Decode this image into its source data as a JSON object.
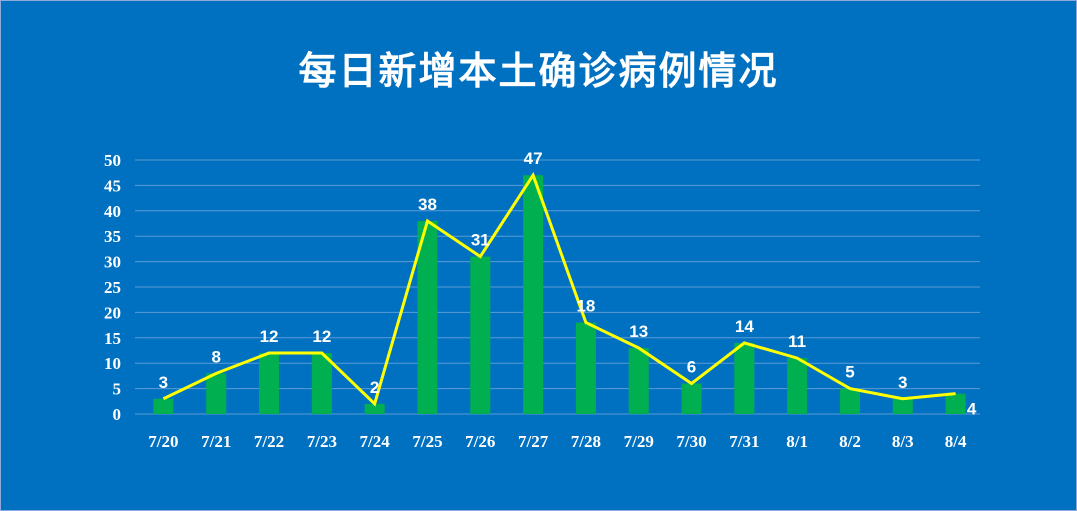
{
  "chart_data": {
    "type": "bar",
    "title": "每日新增本土确诊病例情况",
    "xlabel": "",
    "ylabel": "",
    "ylim": [
      0,
      50
    ],
    "yticks": [
      0,
      5,
      10,
      15,
      20,
      25,
      30,
      35,
      40,
      45,
      50
    ],
    "grid": true,
    "legend": "none",
    "categories": [
      "7/20",
      "7/21",
      "7/22",
      "7/23",
      "7/24",
      "7/25",
      "7/26",
      "7/27",
      "7/28",
      "7/29",
      "7/30",
      "7/31",
      "8/1",
      "8/2",
      "8/3",
      "8/4"
    ],
    "series": [
      {
        "type": "bar",
        "color": "#00b050",
        "values": [
          3,
          8,
          12,
          12,
          2,
          38,
          31,
          47,
          18,
          13,
          6,
          14,
          11,
          5,
          3,
          4
        ]
      },
      {
        "type": "line",
        "color": "#ffff00",
        "values": [
          3,
          8,
          12,
          12,
          2,
          38,
          31,
          47,
          18,
          13,
          6,
          14,
          11,
          5,
          3,
          4
        ]
      }
    ],
    "data_labels": [
      "3",
      "8",
      "12",
      "12",
      "2",
      "38",
      "31",
      "47",
      "18",
      "13",
      "6",
      "14",
      "11",
      "5",
      "3",
      "4"
    ],
    "colors": {
      "background": "#0070c0",
      "gridline": "#5b9bd5",
      "text": "#ffffff"
    }
  }
}
